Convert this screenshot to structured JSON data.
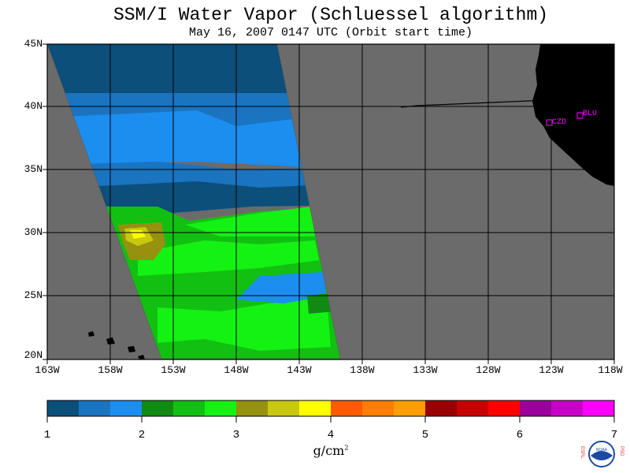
{
  "title": "SSM/I Water Vapor (Schluessel algorithm)",
  "subtitle": "May 16, 2007  0147 UTC  (Orbit start time)",
  "latitudes": [
    "45N",
    "40N",
    "35N",
    "30N",
    "25N",
    "20N"
  ],
  "longitudes": [
    "163W",
    "158W",
    "153W",
    "148W",
    "143W",
    "138W",
    "133W",
    "128W",
    "123W",
    "118W"
  ],
  "stations": [
    {
      "name": "CZD"
    },
    {
      "name": "BLU"
    }
  ],
  "colorbar": {
    "ticks": [
      "1",
      "2",
      "3",
      "4",
      "5",
      "6",
      "7"
    ],
    "units": "g/cm",
    "units_sup": "2",
    "colors": [
      "#0b4f7a",
      "#1a74c0",
      "#1b8ef0",
      "#118a14",
      "#12c012",
      "#14f214",
      "#96910f",
      "#c8c80e",
      "#ffff00",
      "#ff5a00",
      "#ff7d00",
      "#ff9e00",
      "#9a0000",
      "#c70000",
      "#ff0000",
      "#9a009a",
      "#c800c8",
      "#ff00ff"
    ]
  },
  "colors": {
    "ocean_missing": "#6b6b6b",
    "land": "#000000",
    "station": "#ff00ff"
  },
  "logo": {
    "left_text": "ESRL",
    "right_text": "PSD",
    "center_text": "NOAA"
  }
}
